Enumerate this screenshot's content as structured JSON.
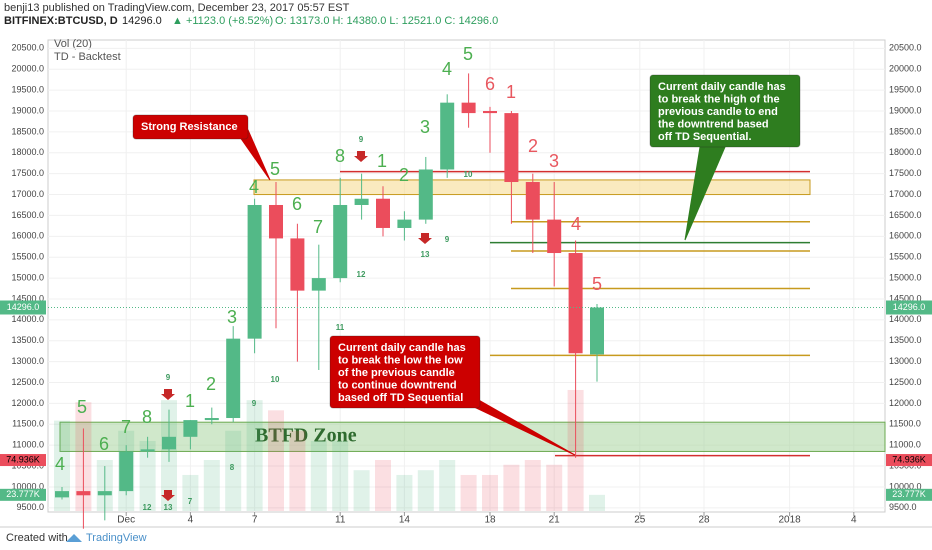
{
  "chart_data": {
    "type": "candlestick",
    "header": "benji13 published on TradingView.com, December 23, 2017 05:57 EST",
    "symbol": "BITFINEX:BTCUSD, D",
    "last": "14296.0",
    "change": "▲ +1123.0 (+8.52%)",
    "ohlc_text": "O: 13173.0  H: 14380.0  L: 12521.0  C: 14296.0",
    "legend": [
      "Vol (20)",
      "TD - Backtest"
    ],
    "footer": [
      "Created with",
      "TradingView"
    ],
    "categories": [
      null,
      null,
      null,
      "Dec",
      null,
      null,
      "4",
      null,
      null,
      "7",
      null,
      null,
      null,
      "11",
      null,
      null,
      "14",
      null,
      null,
      null,
      "18",
      null,
      null,
      "21",
      null,
      null,
      null,
      "25",
      null,
      null,
      "28",
      null,
      null,
      null,
      "2018",
      null,
      null,
      "4",
      null
    ],
    "open": [
      9750,
      9900,
      9800,
      9900,
      10850,
      10900,
      11200,
      11600,
      11650,
      13550,
      16750,
      15950,
      14700,
      15000,
      16750,
      16900,
      16200,
      16400,
      17600,
      19200,
      19000,
      18950,
      17300,
      16400,
      15600,
      13173,
      null,
      null,
      null,
      null,
      null,
      null,
      null,
      null,
      null,
      null,
      null,
      null,
      null
    ],
    "high": [
      10000,
      11400,
      10500,
      11000,
      11200,
      11850,
      11600,
      11900,
      13850,
      16900,
      17300,
      16300,
      15800,
      17400,
      17500,
      17200,
      16600,
      17900,
      19400,
      19900,
      19100,
      19000,
      17500,
      17300,
      15900,
      14380,
      null,
      null,
      null,
      null,
      null,
      null,
      null,
      null,
      null,
      null,
      null,
      null,
      null
    ],
    "low": [
      9700,
      9000,
      9200,
      9800,
      10700,
      10600,
      10900,
      11500,
      11550,
      13200,
      13800,
      13000,
      12800,
      14900,
      16400,
      16000,
      15900,
      16300,
      17400,
      18600,
      18000,
      16300,
      15600,
      14800,
      10700,
      12521,
      null,
      null,
      null,
      null,
      null,
      null,
      null,
      null,
      null,
      null,
      null,
      null,
      null
    ],
    "close": [
      9900,
      9800,
      9900,
      10850,
      10900,
      11200,
      11600,
      11650,
      13550,
      16750,
      15950,
      14700,
      15000,
      16750,
      16900,
      16200,
      16400,
      17600,
      19200,
      18950,
      18950,
      17300,
      16400,
      15600,
      13200,
      14296,
      null,
      null,
      null,
      null,
      null,
      null,
      null,
      null,
      null,
      null,
      null,
      null,
      null
    ],
    "volume": [
      133000,
      160000,
      75000,
      118000,
      103000,
      163000,
      53000,
      75000,
      118000,
      163000,
      148000,
      118000,
      103000,
      103000,
      60000,
      75000,
      53000,
      60000,
      75000,
      53000,
      53000,
      68000,
      75000,
      68000,
      178000,
      23777,
      null,
      null,
      null,
      null,
      null,
      null,
      null,
      null,
      null,
      null,
      null,
      null,
      null
    ],
    "up_color": "#53b987",
    "down_color": "#eb4d5c",
    "volume_badges": [
      {
        "value": 74936,
        "label": "74.936K",
        "color": "#eb4d5c"
      },
      {
        "value": 23777,
        "label": "23.777K",
        "color": "#53b987"
      }
    ],
    "last_price": {
      "value": 14296,
      "label": "14296.0"
    },
    "ylim": [
      9400,
      20700
    ],
    "yticks": [
      {
        "value": 9500,
        "label": "9500.0"
      },
      {
        "value": 10000,
        "label": "10000.0"
      },
      {
        "value": 10500,
        "label": "10500.0"
      },
      {
        "value": 11000,
        "label": "11000.0"
      },
      {
        "value": 11500,
        "label": "11500.0"
      },
      {
        "value": 12000,
        "label": "12000.0"
      },
      {
        "value": 12500,
        "label": "12500.0"
      },
      {
        "value": 13000,
        "label": "13000.0"
      },
      {
        "value": 13500,
        "label": "13500.0"
      },
      {
        "value": 14000,
        "label": "14000.0"
      },
      {
        "value": 14500,
        "label": "14500.0"
      },
      {
        "value": 15000,
        "label": "15000.0"
      },
      {
        "value": 15500,
        "label": "15500.0"
      },
      {
        "value": 16000,
        "label": "16000.0"
      },
      {
        "value": 16500,
        "label": "16500.0"
      },
      {
        "value": 17000,
        "label": "17000.0"
      },
      {
        "value": 17500,
        "label": "17500.0"
      },
      {
        "value": 18000,
        "label": "18000.0"
      },
      {
        "value": 18500,
        "label": "18500.0"
      },
      {
        "value": 19000,
        "label": "19000.0"
      },
      {
        "value": 19500,
        "label": "19500.0"
      },
      {
        "value": 20000,
        "label": "20000.0"
      },
      {
        "value": 20500,
        "label": "20500.0"
      }
    ],
    "levels": [
      {
        "value": 17550,
        "color": "#d32f2f"
      },
      {
        "value": 16350,
        "color": "#c79a1e"
      },
      {
        "value": 15850,
        "color": "#2e7d32"
      },
      {
        "value": 15650,
        "color": "#c79a1e"
      },
      {
        "value": 14750,
        "color": "#c79a1e"
      },
      {
        "value": 13150,
        "color": "#c79a1e"
      },
      {
        "value": 10750,
        "color": "#d32f2f"
      }
    ],
    "zones": [
      {
        "low": 17000,
        "high": 17350,
        "color": "#f5d98a"
      },
      {
        "low": 10850,
        "high": 11550,
        "color": "#a9d5a0"
      }
    ],
    "zone_label": "BTFD Zone",
    "td_labels": [
      {
        "text": "4",
        "color": "#4caf50"
      },
      {
        "text": "5",
        "color": "#4caf50"
      },
      {
        "text": "6",
        "color": "#4caf50"
      },
      {
        "text": "7",
        "color": "#4caf50"
      },
      {
        "text": "8",
        "color": "#4caf50"
      },
      {
        "text": "1",
        "color": "#4caf50"
      },
      {
        "text": "2",
        "color": "#4caf50"
      },
      {
        "text": "3",
        "color": "#4caf50"
      },
      {
        "text": "4",
        "color": "#4caf50"
      },
      {
        "text": "5",
        "color": "#4caf50"
      },
      {
        "text": "6",
        "color": "#4caf50"
      },
      {
        "text": "7",
        "color": "#4caf50"
      },
      {
        "text": "8",
        "color": "#4caf50"
      },
      {
        "text": "1",
        "color": "#4caf50"
      },
      {
        "text": "2",
        "color": "#4caf50"
      },
      {
        "text": "3",
        "color": "#4caf50"
      },
      {
        "text": "4",
        "color": "#4caf50"
      },
      {
        "text": "5",
        "color": "#4caf50"
      },
      {
        "text": "6",
        "color": "#e8575f"
      },
      {
        "text": "1",
        "color": "#e8575f"
      },
      {
        "text": "2",
        "color": "#e8575f"
      },
      {
        "text": "3",
        "color": "#e8575f"
      },
      {
        "text": "4",
        "color": "#e8575f"
      },
      {
        "text": "5",
        "color": "#e8575f"
      },
      {
        "text": "9",
        "color": "#3d9a5f"
      },
      {
        "text": "10",
        "color": "#3d9a5f"
      },
      {
        "text": "9",
        "color": "#3d9a5f"
      },
      {
        "text": "11",
        "color": "#3d9a5f"
      },
      {
        "text": "12",
        "color": "#3d9a5f"
      },
      {
        "text": "9",
        "color": "#3d9a5f"
      },
      {
        "text": "10",
        "color": "#3d9a5f"
      },
      {
        "text": "9",
        "color": "#3d9a5f"
      },
      {
        "text": "13",
        "color": "#3d9a5f"
      },
      {
        "text": "8",
        "color": "#3d9a5f"
      },
      {
        "text": "7",
        "color": "#3d9a5f"
      },
      {
        "text": "12",
        "color": "#3d9a5f"
      },
      {
        "text": "13",
        "color": "#3d9a5f"
      }
    ],
    "callouts": [
      {
        "lines": [
          "Strong Resistance"
        ],
        "color": "#cc0000"
      },
      {
        "lines": [
          "Current daily candle has",
          "to break the high of the",
          "previous candle to end",
          "the downtrend based",
          "off TD Sequential."
        ],
        "color": "#2e7d1f"
      },
      {
        "lines": [
          "Current daily candle has",
          "to break the low the low",
          "of the previous candle",
          "to continue downtrend",
          "based off TD Sequential"
        ],
        "color": "#cc0000"
      }
    ]
  }
}
